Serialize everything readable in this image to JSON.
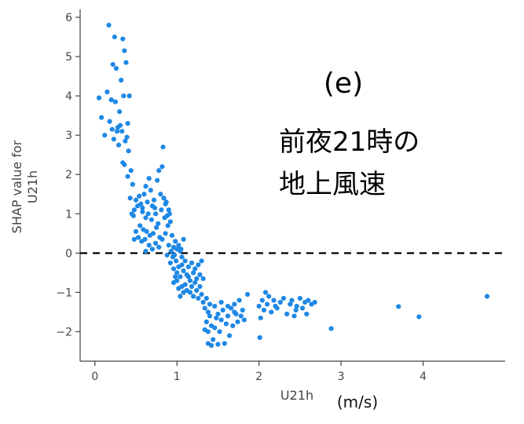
{
  "chart_data": {
    "type": "scatter",
    "title": "",
    "xlabel": "U21h",
    "xunit": "(m/s)",
    "ylabel_lines": [
      "SHAP value for",
      "U21h"
    ],
    "xlim": [
      -0.18,
      5.0
    ],
    "ylim": [
      -2.75,
      6.2
    ],
    "xticks": [
      0,
      1,
      2,
      3,
      4
    ],
    "yticks": [
      -2,
      -1,
      0,
      1,
      2,
      3,
      4,
      5,
      6
    ],
    "xtick_labels": [
      "0",
      "1",
      "2",
      "3",
      "4"
    ],
    "ytick_labels": [
      "−2",
      "−1",
      "0",
      "1",
      "2",
      "3",
      "4",
      "5",
      "6"
    ],
    "reference_line": {
      "y": 0,
      "style": "dashed",
      "color": "#000000"
    },
    "point_color": "#1e88e5",
    "grid": false,
    "annotations": {
      "panel": "(e)",
      "lines": [
        "前夜21時の",
        "地上風速"
      ]
    },
    "points": [
      [
        0.05,
        3.95
      ],
      [
        0.08,
        3.45
      ],
      [
        0.12,
        3.0
      ],
      [
        0.15,
        4.1
      ],
      [
        0.17,
        5.8
      ],
      [
        0.2,
        3.9
      ],
      [
        0.22,
        4.8
      ],
      [
        0.24,
        5.5
      ],
      [
        0.26,
        4.7
      ],
      [
        0.28,
        3.2
      ],
      [
        0.3,
        3.6
      ],
      [
        0.32,
        4.4
      ],
      [
        0.34,
        5.45
      ],
      [
        0.35,
        4.0
      ],
      [
        0.36,
        5.15
      ],
      [
        0.38,
        4.85
      ],
      [
        0.4,
        3.3
      ],
      [
        0.42,
        4.0
      ],
      [
        0.18,
        3.35
      ],
      [
        0.21,
        3.15
      ],
      [
        0.25,
        3.85
      ],
      [
        0.27,
        3.1
      ],
      [
        0.31,
        3.25
      ],
      [
        0.33,
        3.1
      ],
      [
        0.23,
        2.9
      ],
      [
        0.29,
        2.75
      ],
      [
        0.37,
        2.85
      ],
      [
        0.39,
        2.95
      ],
      [
        0.41,
        2.6
      ],
      [
        0.34,
        2.3
      ],
      [
        0.36,
        2.25
      ],
      [
        0.44,
        2.1
      ],
      [
        0.4,
        1.95
      ],
      [
        0.46,
        1.75
      ],
      [
        0.43,
        1.4
      ],
      [
        0.45,
        1.0
      ],
      [
        0.47,
        0.95
      ],
      [
        0.5,
        1.35
      ],
      [
        0.52,
        1.2
      ],
      [
        0.54,
        1.45
      ],
      [
        0.48,
        1.1
      ],
      [
        0.56,
        1.25
      ],
      [
        0.58,
        1.05
      ],
      [
        0.6,
        1.5
      ],
      [
        0.62,
        1.7
      ],
      [
        0.64,
        1.3
      ],
      [
        0.66,
        1.9
      ],
      [
        0.68,
        1.6
      ],
      [
        0.7,
        1.2
      ],
      [
        0.72,
        1.35
      ],
      [
        0.74,
        1.0
      ],
      [
        0.76,
        1.85
      ],
      [
        0.78,
        2.1
      ],
      [
        0.8,
        1.5
      ],
      [
        0.82,
        2.2
      ],
      [
        0.84,
        1.4
      ],
      [
        0.86,
        1.25
      ],
      [
        0.88,
        0.95
      ],
      [
        0.9,
        1.1
      ],
      [
        0.92,
        0.8
      ],
      [
        0.83,
        2.7
      ],
      [
        0.58,
        1.15
      ],
      [
        0.62,
        0.9
      ],
      [
        0.65,
        1.0
      ],
      [
        0.69,
        0.85
      ],
      [
        0.73,
        1.15
      ],
      [
        0.77,
        0.75
      ],
      [
        0.81,
        1.1
      ],
      [
        0.85,
        0.9
      ],
      [
        0.87,
        1.3
      ],
      [
        0.89,
        0.7
      ],
      [
        0.91,
        1.0
      ],
      [
        0.5,
        0.55
      ],
      [
        0.55,
        0.7
      ],
      [
        0.59,
        0.6
      ],
      [
        0.63,
        0.55
      ],
      [
        0.67,
        0.45
      ],
      [
        0.71,
        0.5
      ],
      [
        0.75,
        0.65
      ],
      [
        0.79,
        0.4
      ],
      [
        0.48,
        0.35
      ],
      [
        0.53,
        0.4
      ],
      [
        0.57,
        0.3
      ],
      [
        0.61,
        0.35
      ],
      [
        0.66,
        0.2
      ],
      [
        0.62,
        0.05
      ],
      [
        0.7,
        0.1
      ],
      [
        0.74,
        0.25
      ],
      [
        0.78,
        0.15
      ],
      [
        0.82,
        0.35
      ],
      [
        0.86,
        0.5
      ],
      [
        0.9,
        0.2
      ],
      [
        0.94,
        0.45
      ],
      [
        0.96,
        0.15
      ],
      [
        0.98,
        0.3
      ],
      [
        1.0,
        0.1
      ],
      [
        0.93,
        0.05
      ],
      [
        0.95,
        -0.1
      ],
      [
        0.97,
        -0.05
      ],
      [
        0.99,
        -0.2
      ],
      [
        1.02,
        0.2
      ],
      [
        1.04,
        0.05
      ],
      [
        1.06,
        -0.1
      ],
      [
        1.08,
        0.35
      ],
      [
        1.05,
        0.1
      ],
      [
        0.88,
        -0.05
      ],
      [
        0.92,
        -0.25
      ],
      [
        0.96,
        -0.4
      ],
      [
        1.0,
        -0.5
      ],
      [
        1.02,
        -0.35
      ],
      [
        1.04,
        -0.6
      ],
      [
        1.06,
        -0.3
      ],
      [
        1.08,
        -0.45
      ],
      [
        1.1,
        -0.2
      ],
      [
        1.12,
        -0.55
      ],
      [
        1.14,
        -0.35
      ],
      [
        1.16,
        -0.7
      ],
      [
        1.18,
        -0.25
      ],
      [
        1.2,
        -0.5
      ],
      [
        1.22,
        -0.4
      ],
      [
        1.24,
        -0.65
      ],
      [
        1.26,
        -0.3
      ],
      [
        1.28,
        -0.55
      ],
      [
        1.3,
        -0.2
      ],
      [
        1.1,
        -0.8
      ],
      [
        1.12,
        -0.95
      ],
      [
        1.14,
        -0.6
      ],
      [
        1.16,
        -1.0
      ],
      [
        1.18,
        -0.85
      ],
      [
        1.2,
        -1.1
      ],
      [
        1.22,
        -0.75
      ],
      [
        1.24,
        -0.95
      ],
      [
        1.26,
        -1.15
      ],
      [
        1.28,
        -0.85
      ],
      [
        1.3,
        -1.05
      ],
      [
        1.32,
        -0.65
      ],
      [
        1.0,
        -0.7
      ],
      [
        1.02,
        -0.9
      ],
      [
        1.06,
        -0.85
      ],
      [
        1.08,
        -1.0
      ],
      [
        1.04,
        -1.1
      ],
      [
        0.98,
        -0.6
      ],
      [
        0.96,
        -0.75
      ],
      [
        1.32,
        -1.25
      ],
      [
        1.34,
        -1.4
      ],
      [
        1.36,
        -1.15
      ],
      [
        1.38,
        -1.5
      ],
      [
        1.4,
        -1.3
      ],
      [
        1.36,
        -1.75
      ],
      [
        1.38,
        -2.0
      ],
      [
        1.4,
        -1.6
      ],
      [
        1.42,
        -1.85
      ],
      [
        1.44,
        -2.2
      ],
      [
        1.46,
        -1.9
      ],
      [
        1.48,
        -1.65
      ],
      [
        1.5,
        -1.55
      ],
      [
        1.52,
        -2.0
      ],
      [
        1.54,
        -1.7
      ],
      [
        1.56,
        -1.45
      ],
      [
        1.58,
        -2.3
      ],
      [
        1.6,
        -1.8
      ],
      [
        1.62,
        -1.6
      ],
      [
        1.64,
        -2.1
      ],
      [
        1.66,
        -1.4
      ],
      [
        1.68,
        -1.85
      ],
      [
        1.7,
        -1.3
      ],
      [
        1.72,
        -1.55
      ],
      [
        1.74,
        -1.75
      ],
      [
        1.76,
        -1.2
      ],
      [
        1.78,
        -1.6
      ],
      [
        1.8,
        -1.45
      ],
      [
        1.82,
        -1.7
      ],
      [
        1.38,
        -2.3
      ],
      [
        1.42,
        -2.35
      ],
      [
        1.5,
        -2.32
      ],
      [
        1.34,
        -1.95
      ],
      [
        1.46,
        -1.35
      ],
      [
        1.54,
        -1.25
      ],
      [
        1.62,
        -1.35
      ],
      [
        1.7,
        -1.5
      ],
      [
        1.86,
        -1.05
      ],
      [
        2.0,
        -1.35
      ],
      [
        2.02,
        -1.65
      ],
      [
        2.04,
        -1.2
      ],
      [
        2.06,
        -1.45
      ],
      [
        2.08,
        -1.0
      ],
      [
        2.1,
        -1.3
      ],
      [
        2.12,
        -1.1
      ],
      [
        2.15,
        -1.5
      ],
      [
        2.18,
        -1.2
      ],
      [
        2.22,
        -1.4
      ],
      [
        2.26,
        -1.25
      ],
      [
        2.3,
        -1.15
      ],
      [
        2.34,
        -1.55
      ],
      [
        2.38,
        -1.3
      ],
      [
        2.4,
        -1.2
      ],
      [
        2.43,
        -1.6
      ],
      [
        2.46,
        -1.35
      ],
      [
        2.5,
        -1.15
      ],
      [
        2.53,
        -1.4
      ],
      [
        2.56,
        -1.25
      ],
      [
        2.6,
        -1.2
      ],
      [
        2.64,
        -1.3
      ],
      [
        2.68,
        -1.25
      ],
      [
        2.2,
        -1.35
      ],
      [
        2.45,
        -1.45
      ],
      [
        2.58,
        -1.55
      ],
      [
        2.01,
        -2.15
      ],
      [
        2.88,
        -1.92
      ],
      [
        3.7,
        -1.36
      ],
      [
        3.95,
        -1.62
      ],
      [
        4.78,
        -1.1
      ]
    ]
  }
}
